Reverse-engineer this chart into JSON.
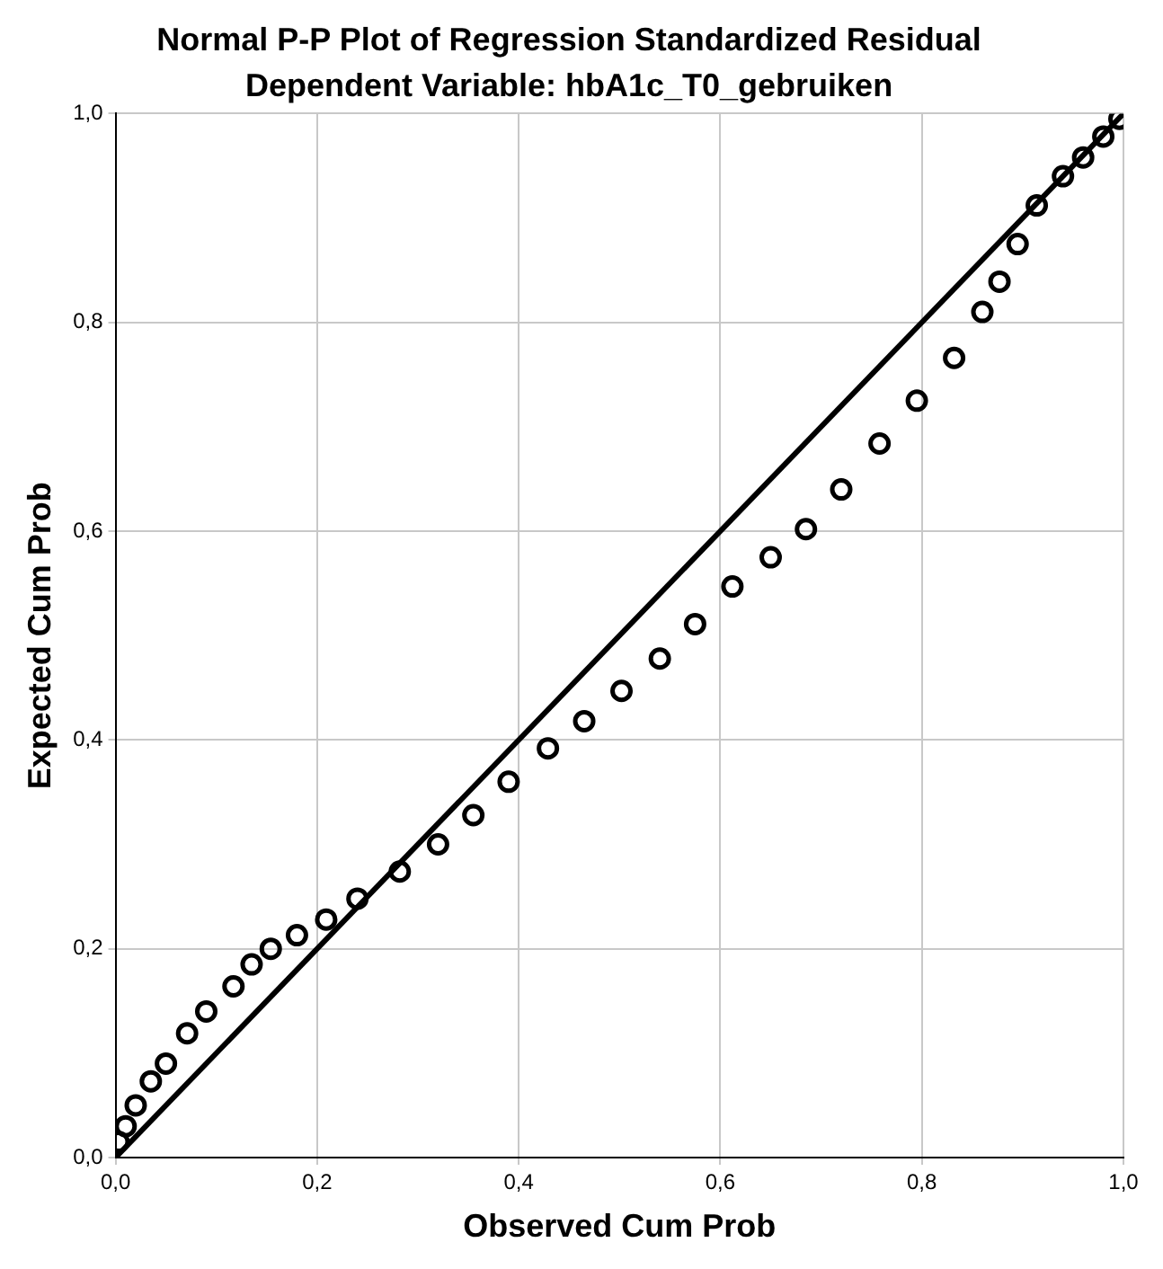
{
  "chart_data": {
    "type": "scatter",
    "title": "Normal P-P Plot of Regression Standardized Residual",
    "subtitle": "Dependent Variable: hbA1c_T0_gebruiken",
    "xlabel": "Observed Cum Prob",
    "ylabel": "Expected Cum Prob",
    "xlim": [
      0,
      1
    ],
    "ylim": [
      0,
      1
    ],
    "xticks": [
      {
        "value": 0,
        "label": "0,0"
      },
      {
        "value": 0.2,
        "label": "0,2"
      },
      {
        "value": 0.4,
        "label": "0,4"
      },
      {
        "value": 0.6,
        "label": "0,6"
      },
      {
        "value": 0.8,
        "label": "0,8"
      },
      {
        "value": 1,
        "label": "1,0"
      }
    ],
    "yticks": [
      {
        "value": 0,
        "label": "0,0"
      },
      {
        "value": 0.2,
        "label": "0,2"
      },
      {
        "value": 0.4,
        "label": "0,4"
      },
      {
        "value": 0.6,
        "label": "0,6"
      },
      {
        "value": 0.8,
        "label": "0,8"
      },
      {
        "value": 1,
        "label": "1,0"
      }
    ],
    "grid": true,
    "legend": false,
    "series": [
      {
        "type": "scatter",
        "color": "#000000",
        "marker": "circle",
        "x": [
          0.003,
          0.01,
          0.02,
          0.035,
          0.05,
          0.071,
          0.09,
          0.117,
          0.135,
          0.154,
          0.18,
          0.209,
          0.24,
          0.282,
          0.32,
          0.355,
          0.39,
          0.429,
          0.465,
          0.502,
          0.54,
          0.575,
          0.612,
          0.65,
          0.685,
          0.72,
          0.758,
          0.795,
          0.832,
          0.86,
          0.877,
          0.895,
          0.914,
          0.94,
          0.96,
          0.98,
          0.996
        ],
        "values": [
          0.015,
          0.03,
          0.05,
          0.073,
          0.09,
          0.119,
          0.14,
          0.164,
          0.185,
          0.2,
          0.213,
          0.228,
          0.248,
          0.274,
          0.3,
          0.328,
          0.36,
          0.392,
          0.418,
          0.447,
          0.478,
          0.511,
          0.547,
          0.575,
          0.602,
          0.64,
          0.684,
          0.725,
          0.766,
          0.81,
          0.839,
          0.875,
          0.912,
          0.94,
          0.958,
          0.978,
          0.995
        ]
      },
      {
        "type": "line",
        "color": "#000000",
        "marker": "none",
        "line_style": "solid",
        "x": [
          0,
          1
        ],
        "values": [
          0,
          1
        ]
      }
    ]
  }
}
